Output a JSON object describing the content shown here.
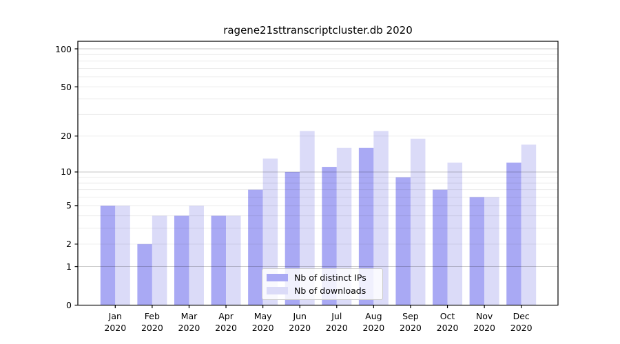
{
  "chart_data": {
    "type": "bar",
    "title": "ragene21sttranscriptcluster.db 2020",
    "categories": [
      "Jan",
      "Feb",
      "Mar",
      "Apr",
      "May",
      "Jun",
      "Jul",
      "Aug",
      "Sep",
      "Oct",
      "Nov",
      "Dec"
    ],
    "x_year": "2020",
    "series": [
      {
        "name": "Nb of distinct IPs",
        "color": "#a9a9f4",
        "values": [
          5,
          2,
          4,
          4,
          7,
          10,
          11,
          16,
          9,
          7,
          6,
          12
        ]
      },
      {
        "name": "Nb of downloads",
        "color": "#dbdbf8",
        "values": [
          5,
          4,
          5,
          4,
          13,
          22,
          16,
          22,
          19,
          12,
          6,
          17
        ]
      }
    ],
    "y_scale": "log1p",
    "y_ticks": [
      0,
      1,
      2,
      5,
      10,
      20,
      50,
      100
    ],
    "y_major_gridlines": [
      1,
      10,
      100
    ],
    "y_minor_gridlines": [
      2,
      3,
      4,
      5,
      6,
      7,
      8,
      9,
      20,
      30,
      40,
      50,
      60,
      70,
      80,
      90
    ],
    "y_range": [
      0,
      114.8
    ],
    "grid": true,
    "legend_position": "lower-center"
  },
  "colors": {
    "spine": "#000000",
    "major_grid": "rgba(0,0,0,0.22)",
    "minor_grid": "rgba(0,0,0,0.075)",
    "background": "#ffffff"
  }
}
